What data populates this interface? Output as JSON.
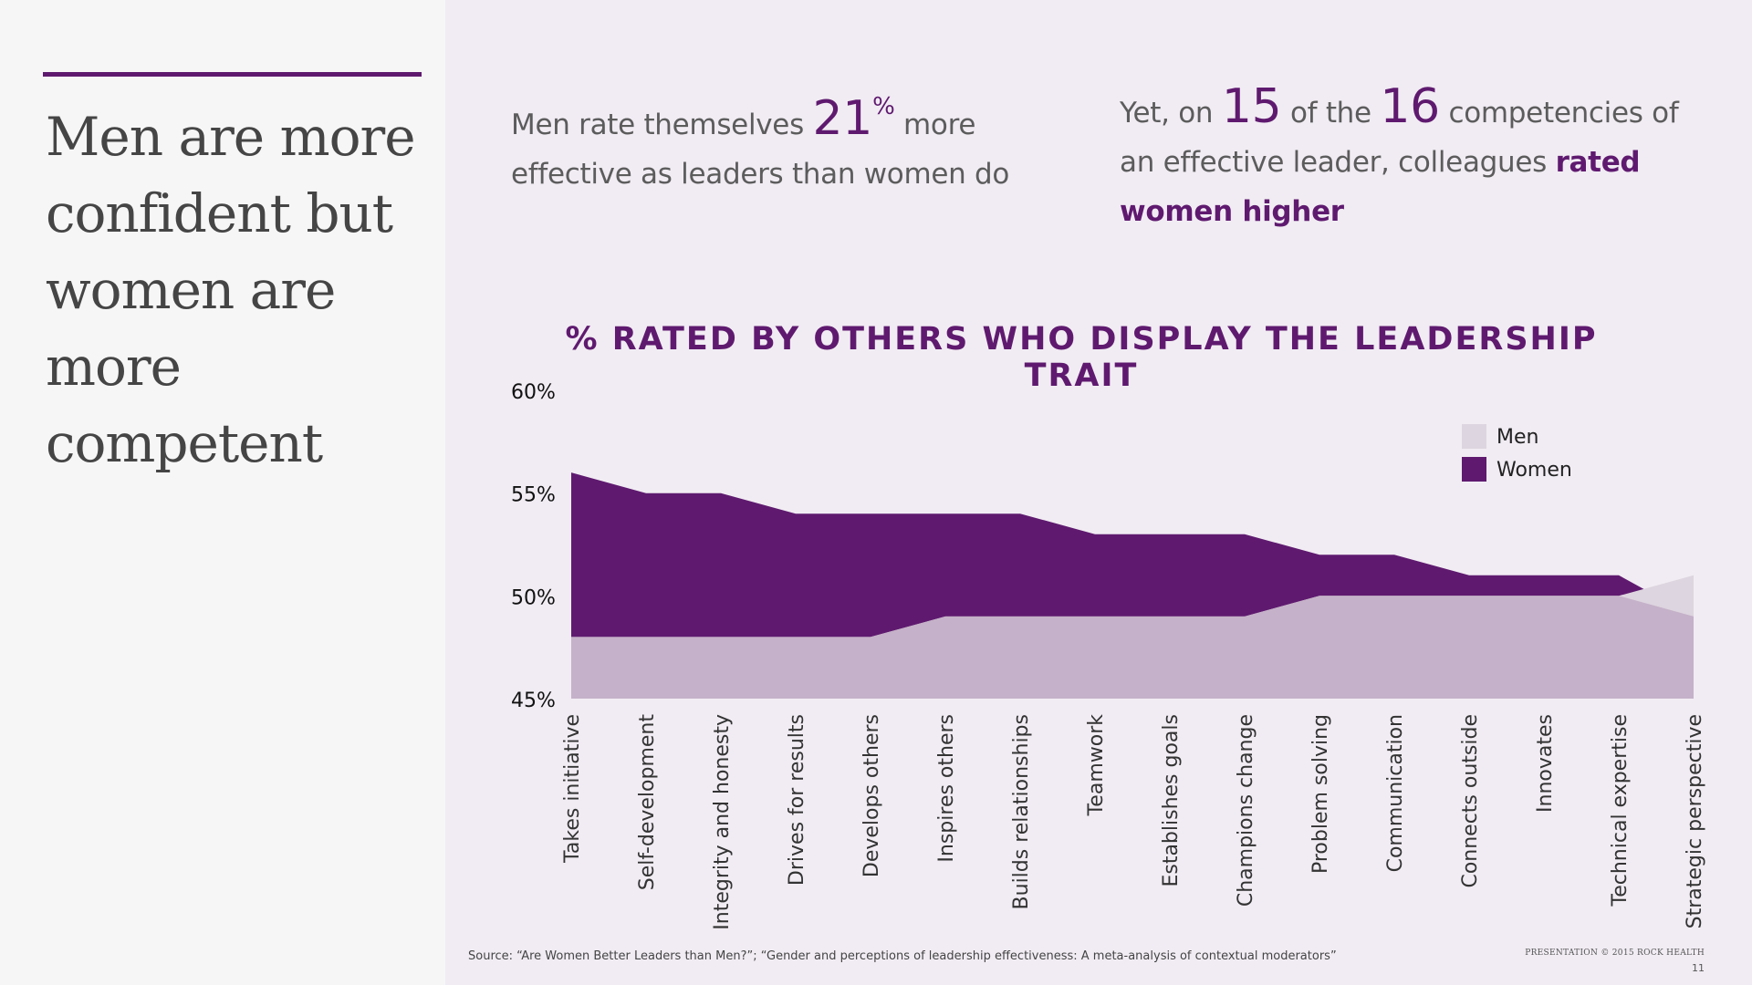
{
  "headline": "Men are more confident but women are more competent",
  "stat_left": {
    "prefix": "Men rate themselves",
    "number": "21",
    "percent_sign": "%",
    "suffix": "more effective as leaders than women do"
  },
  "stat_right": {
    "prefix": "Yet, on",
    "number1": "15",
    "middle": "of the",
    "number2": "16",
    "suffix": "competencies of an effective leader, colleagues",
    "highlight": "rated women higher"
  },
  "chart_data": {
    "type": "area",
    "title": "% RATED BY OTHERS WHO DISPLAY THE LEADERSHIP TRAIT",
    "categories": [
      "Takes initiative",
      "Self-development",
      "Integrity and honesty",
      "Drives for results",
      "Develops others",
      "Inspires others",
      "Builds relationships",
      "Teamwork",
      "Establishes goals",
      "Champions change",
      "Problem solving",
      "Communication",
      "Connects outside",
      "Innovates",
      "Technical expertise",
      "Strategic perspective"
    ],
    "series": [
      {
        "name": "Men",
        "values": [
          48,
          48,
          48,
          48,
          48,
          49,
          49,
          49,
          49,
          49,
          50,
          50,
          50,
          50,
          50,
          51
        ]
      },
      {
        "name": "Women",
        "values": [
          56,
          55,
          55,
          54,
          54,
          54,
          54,
          53,
          53,
          53,
          52,
          52,
          51,
          51,
          51,
          49
        ]
      }
    ],
    "ylim": [
      45,
      60
    ],
    "yticks": [
      45,
      50,
      55,
      60
    ],
    "ytick_labels": [
      "45%",
      "50%",
      "55%",
      "60%"
    ],
    "legend_position": "top-right",
    "colors": {
      "Men": "#ddd5df",
      "Women": "#5f1a6f",
      "overlap": "#c5b1c9"
    }
  },
  "source": "Source: “Are Women Better Leaders than Men?”; “Gender and perceptions of leadership effectiveness: A meta-analysis of contextual moderators”",
  "footer": {
    "brand": "PRESENTATION © 2015 ROCK HEALTH",
    "page": "11"
  }
}
